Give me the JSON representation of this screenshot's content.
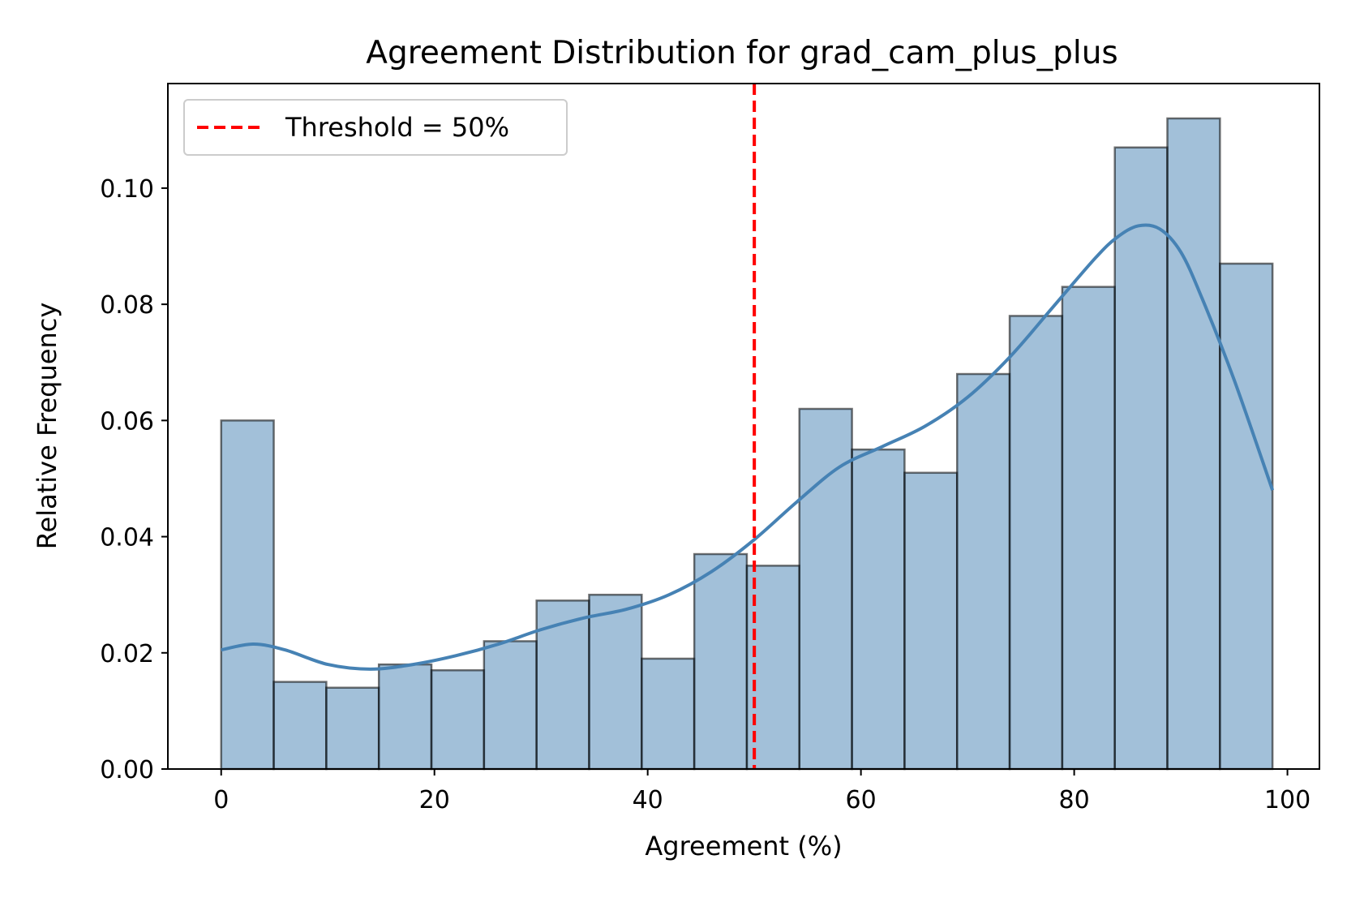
{
  "chart_data": {
    "type": "bar",
    "title": "Agreement Distribution for grad_cam_plus_plus",
    "xlabel": "Agreement (%)",
    "ylabel": "Relative Frequency",
    "xlim": [
      -5,
      103
    ],
    "ylim": [
      0,
      0.118
    ],
    "xticks": [
      0,
      20,
      40,
      60,
      80,
      100
    ],
    "xtick_labels": [
      "0",
      "20",
      "40",
      "60",
      "80",
      "100"
    ],
    "yticks": [
      0,
      0.02,
      0.04,
      0.06,
      0.08,
      0.1
    ],
    "ytick_labels": [
      "0.00",
      "0.02",
      "0.04",
      "0.06",
      "0.08",
      "0.10"
    ],
    "grid": false,
    "bin_edges": [
      0,
      4.93,
      9.86,
      14.79,
      19.72,
      24.65,
      29.58,
      34.51,
      39.44,
      44.37,
      49.3,
      54.23,
      59.16,
      64.09,
      69.02,
      73.95,
      78.88,
      83.81,
      88.74,
      93.67,
      98.6
    ],
    "values": [
      0.06,
      0.015,
      0.014,
      0.018,
      0.017,
      0.022,
      0.029,
      0.03,
      0.019,
      0.037,
      0.035,
      0.062,
      0.055,
      0.051,
      0.068,
      0.078,
      0.083,
      0.107,
      0.112,
      0.087
    ],
    "bar_color": "#4682b4",
    "bar_alpha": 0.5,
    "bar_edge_color": "#000000",
    "kde": {
      "color": "#4682b4",
      "x": [
        0,
        3,
        6,
        10,
        14,
        18,
        22,
        26,
        30,
        34,
        38,
        42,
        46,
        50,
        54,
        58,
        62,
        66,
        70,
        74,
        78,
        82,
        84,
        86,
        88,
        90,
        92,
        95,
        98.6
      ],
      "y": [
        0.0205,
        0.0215,
        0.0205,
        0.018,
        0.0172,
        0.018,
        0.0195,
        0.0215,
        0.024,
        0.026,
        0.0275,
        0.03,
        0.034,
        0.0395,
        0.046,
        0.052,
        0.0555,
        0.059,
        0.064,
        0.071,
        0.0795,
        0.088,
        0.0915,
        0.0935,
        0.093,
        0.089,
        0.081,
        0.067,
        0.048
      ]
    },
    "threshold": {
      "x": 50,
      "color": "#ff0000",
      "label": "Threshold = 50%"
    },
    "legend_position": "top-left"
  }
}
